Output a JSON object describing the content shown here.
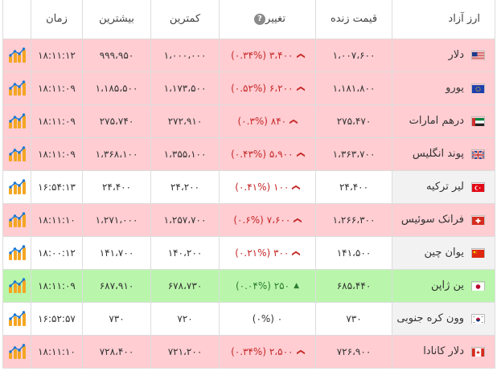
{
  "headers": {
    "name": "ارز آزاد",
    "price": "قیمت زنده",
    "change": "تغییر",
    "change_help_icon": "question-circle-icon",
    "low": "کمترین",
    "high": "بیشترین",
    "time": "زمان"
  },
  "colors": {
    "down_row": "#ffcdd2",
    "up_row": "#b9f6ab",
    "neutral_row": "#ffffff",
    "down_text": "#c62828",
    "up_text": "#2e7d32",
    "chart_icon": "#f5a623"
  },
  "rows": [
    {
      "name": "دلار",
      "flag": "us-flag-icon",
      "price": "۱،۰۰۷،۶۰۰",
      "change": "۳،۴۰۰ (۰.۳۴%)",
      "direction": "down",
      "low": "۱،۰۰۰،۰۰۰",
      "high": "۹۹۹،۹۵۰",
      "time": "۱۸:۱۱:۱۲"
    },
    {
      "name": "یورو",
      "flag": "eu-flag-icon",
      "price": "۱،۱۸۱،۸۰۰",
      "change": "۶،۲۰۰ (۰.۵۲%)",
      "direction": "down",
      "low": "۱،۱۷۳،۵۰۰",
      "high": "۱،۱۸۵،۵۰۰",
      "time": "۱۸:۱۱:۰۹"
    },
    {
      "name": "درهم امارات",
      "flag": "ae-flag-icon",
      "price": "۲۷۵،۴۷۰",
      "change": "۸۴۰ (۰.۳%)",
      "direction": "down",
      "low": "۲۷۲،۹۱۰",
      "high": "۲۷۵،۷۴۰",
      "time": "۱۸:۱۱:۰۹"
    },
    {
      "name": "پوند انگلیس",
      "flag": "gb-flag-icon",
      "price": "۱،۳۶۳،۷۰۰",
      "change": "۵،۹۰۰ (۰.۴۳%)",
      "direction": "down",
      "low": "۱،۳۵۵،۱۰۰",
      "high": "۱،۳۶۸،۱۰۰",
      "time": "۱۸:۱۱:۰۹"
    },
    {
      "name": "لیر ترکیه",
      "flag": "tr-flag-icon",
      "price": "۲۴،۴۰۰",
      "change": "۱۰۰ (۰.۴۱%)",
      "direction": "down-neutral",
      "low": "۲۴،۲۰۰",
      "high": "۲۴،۴۰۰",
      "time": "۱۶:۵۴:۱۳"
    },
    {
      "name": "فرانک سوئیس",
      "flag": "ch-flag-icon",
      "price": "۱،۲۶۶،۳۰۰",
      "change": "۷،۶۰۰ (۰.۶%)",
      "direction": "down",
      "low": "۱،۲۵۷،۷۰۰",
      "high": "۱،۲۷۱،۰۰۰",
      "time": "۱۸:۱۱:۱۰"
    },
    {
      "name": "یوان چین",
      "flag": "cn-flag-icon",
      "price": "۱۴۱،۵۰۰",
      "change": "۳۰۰ (۰.۲۱%)",
      "direction": "down-neutral",
      "low": "۱۴۰،۲۰۰",
      "high": "۱۴۱،۷۰۰",
      "time": "۱۸:۰۰:۱۲"
    },
    {
      "name": "ین ژاپن",
      "flag": "jp-flag-icon",
      "price": "۶۸۵،۴۴۰",
      "change": "۲۵۰ (۰.۰۴%)",
      "direction": "up",
      "low": "۶۷۸،۷۳۰",
      "high": "۶۸۷،۹۱۰",
      "time": "۱۸:۱۱:۰۹"
    },
    {
      "name": "وون کره جنوبی",
      "flag": "kr-flag-icon",
      "price": "۷۳۰",
      "change": "۰ (۰%)",
      "direction": "none",
      "low": "۷۲۰",
      "high": "۷۳۰",
      "time": "۱۶:۵۲:۵۷"
    },
    {
      "name": "دلار کانادا",
      "flag": "ca-flag-icon",
      "price": "۷۲۶،۹۰۰",
      "change": "۲،۵۰۰ (۰.۳۴%)",
      "direction": "down",
      "low": "۷۲۱،۲۰۰",
      "high": "۷۲۸،۴۰۰",
      "time": "۱۸:۱۱:۱۰"
    }
  ]
}
